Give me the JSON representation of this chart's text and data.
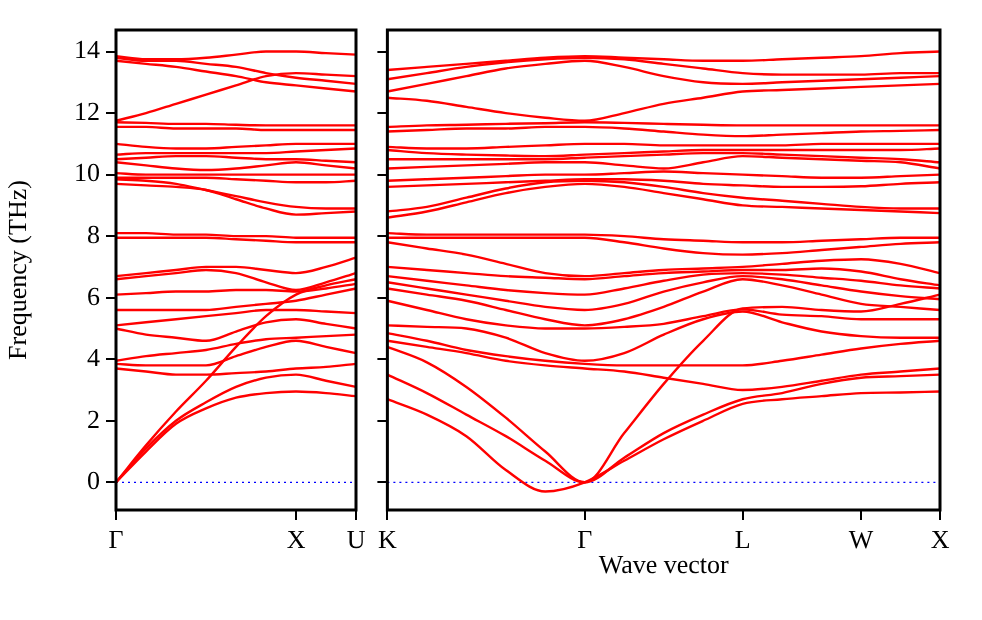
{
  "chart_data": [
    {
      "type": "line",
      "ylabel": "Frequency (THz)",
      "marker": "none",
      "line_style": "solid",
      "grid": false,
      "legend": false,
      "categories": [
        "Γ",
        null,
        null,
        null,
        null,
        null,
        "X",
        null,
        "U"
      ],
      "ylim": [
        -0.9,
        14.7
      ],
      "yticks": [
        0,
        2,
        4,
        6,
        8,
        10,
        12,
        14
      ],
      "ref_lines": [
        {
          "axis": "y",
          "value": 0,
          "label": null,
          "color": "#0000ff",
          "line_style": "dotted"
        }
      ],
      "series": [
        {
          "color": "#ff0000",
          "values": [
            0,
            1.0,
            1.9,
            2.4,
            2.75,
            2.9,
            2.95,
            2.9,
            2.8
          ]
        },
        {
          "color": "#ff0000",
          "values": [
            0,
            1.1,
            2.0,
            2.6,
            3.1,
            3.4,
            3.5,
            3.3,
            3.1
          ]
        },
        {
          "color": "#ff0000",
          "values": [
            0,
            1.2,
            2.3,
            3.3,
            4.4,
            5.4,
            6.1,
            6.4,
            6.6
          ]
        },
        {
          "color": "#ff0000",
          "values": [
            3.7,
            3.6,
            3.5,
            3.5,
            3.55,
            3.6,
            3.7,
            3.75,
            3.85
          ]
        },
        {
          "color": "#ff0000",
          "values": [
            3.85,
            3.8,
            3.8,
            3.8,
            4.1,
            4.4,
            4.6,
            4.4,
            4.2
          ]
        },
        {
          "color": "#ff0000",
          "values": [
            3.95,
            4.1,
            4.2,
            4.3,
            4.5,
            4.65,
            4.7,
            4.75,
            4.8
          ]
        },
        {
          "color": "#ff0000",
          "values": [
            5.0,
            4.8,
            4.7,
            4.6,
            4.9,
            5.2,
            5.3,
            5.15,
            5.0
          ]
        },
        {
          "color": "#ff0000",
          "values": [
            5.1,
            5.2,
            5.3,
            5.4,
            5.5,
            5.6,
            5.6,
            5.55,
            5.5
          ]
        },
        {
          "color": "#ff0000",
          "values": [
            5.6,
            5.6,
            5.6,
            5.6,
            5.7,
            5.8,
            5.9,
            6.1,
            6.3
          ]
        },
        {
          "color": "#ff0000",
          "values": [
            6.1,
            6.15,
            6.2,
            6.2,
            6.25,
            6.25,
            6.2,
            6.3,
            6.45
          ]
        },
        {
          "color": "#ff0000",
          "values": [
            6.6,
            6.7,
            6.8,
            6.9,
            6.8,
            6.5,
            6.25,
            6.5,
            6.8
          ]
        },
        {
          "color": "#ff0000",
          "values": [
            6.7,
            6.8,
            6.9,
            7.0,
            7.0,
            6.9,
            6.8,
            7.0,
            7.3
          ]
        },
        {
          "color": "#ff0000",
          "values": [
            8.1,
            8.1,
            8.05,
            8.05,
            8.0,
            8.0,
            7.95,
            7.95,
            7.95
          ]
        },
        {
          "color": "#ff0000",
          "values": [
            7.95,
            7.95,
            7.95,
            7.95,
            7.9,
            7.85,
            7.8,
            7.8,
            7.8
          ]
        },
        {
          "color": "#ff0000",
          "values": [
            9.7,
            9.65,
            9.6,
            9.5,
            9.2,
            8.9,
            8.7,
            8.75,
            8.8
          ]
        },
        {
          "color": "#ff0000",
          "values": [
            9.85,
            9.8,
            9.7,
            9.5,
            9.3,
            9.1,
            8.95,
            8.9,
            8.9
          ]
        },
        {
          "color": "#ff0000",
          "values": [
            9.9,
            9.9,
            9.9,
            9.9,
            9.85,
            9.8,
            9.75,
            9.75,
            9.8
          ]
        },
        {
          "color": "#ff0000",
          "values": [
            10.05,
            10.0,
            10.0,
            10.0,
            10.0,
            10.0,
            10.0,
            10.0,
            10.0
          ]
        },
        {
          "color": "#ff0000",
          "values": [
            10.4,
            10.3,
            10.2,
            10.15,
            10.2,
            10.3,
            10.4,
            10.3,
            10.2
          ]
        },
        {
          "color": "#ff0000",
          "values": [
            10.5,
            10.55,
            10.6,
            10.6,
            10.55,
            10.5,
            10.5,
            10.45,
            10.4
          ]
        },
        {
          "color": "#ff0000",
          "values": [
            10.65,
            10.7,
            10.7,
            10.7,
            10.7,
            10.7,
            10.75,
            10.8,
            10.85
          ]
        },
        {
          "color": "#ff0000",
          "values": [
            11.0,
            10.9,
            10.85,
            10.85,
            10.9,
            10.95,
            11.0,
            11.0,
            11.0
          ]
        },
        {
          "color": "#ff0000",
          "values": [
            11.55,
            11.55,
            11.5,
            11.5,
            11.5,
            11.45,
            11.45,
            11.45,
            11.45
          ]
        },
        {
          "color": "#ff0000",
          "values": [
            11.7,
            11.68,
            11.65,
            11.65,
            11.62,
            11.6,
            11.6,
            11.6,
            11.6
          ]
        },
        {
          "color": "#ff0000",
          "values": [
            11.75,
            12.0,
            12.3,
            12.6,
            12.9,
            13.2,
            13.3,
            13.25,
            13.2
          ]
        },
        {
          "color": "#ff0000",
          "values": [
            13.7,
            13.6,
            13.5,
            13.35,
            13.2,
            13.0,
            12.9,
            12.8,
            12.7
          ]
        },
        {
          "color": "#ff0000",
          "values": [
            13.8,
            13.7,
            13.7,
            13.6,
            13.5,
            13.3,
            13.15,
            13.05,
            12.95
          ]
        },
        {
          "color": "#ff0000",
          "values": [
            13.85,
            13.75,
            13.75,
            13.8,
            13.9,
            14.0,
            14.0,
            13.95,
            13.9
          ]
        }
      ]
    },
    {
      "type": "line",
      "xlabel": "Wave vector",
      "marker": "none",
      "line_style": "solid",
      "grid": false,
      "legend": false,
      "tick_labels": "x",
      "categories": [
        "K",
        null,
        null,
        null,
        null,
        "Γ",
        null,
        null,
        null,
        "L",
        null,
        null,
        "W",
        null,
        "X"
      ],
      "ylim": [
        -0.9,
        14.7
      ],
      "yticks": [
        0,
        2,
        4,
        6,
        8,
        10,
        12,
        14
      ],
      "ref_lines": [
        {
          "axis": "y",
          "value": 0,
          "label": null,
          "color": "#0000ff",
          "line_style": "dotted"
        }
      ],
      "series": [
        {
          "color": "#ff0000",
          "values": [
            2.7,
            2.2,
            1.5,
            0.4,
            -0.3,
            0,
            0.7,
            1.4,
            2.0,
            2.55,
            2.7,
            2.8,
            2.9,
            2.92,
            2.95
          ]
        },
        {
          "color": "#ff0000",
          "values": [
            3.5,
            2.9,
            2.2,
            1.5,
            0.7,
            0,
            0.8,
            1.6,
            2.2,
            2.7,
            2.9,
            3.2,
            3.4,
            3.45,
            3.5
          ]
        },
        {
          "color": "#ff0000",
          "values": [
            4.4,
            3.9,
            3.1,
            2.1,
            1.0,
            0,
            1.6,
            3.2,
            4.6,
            5.65,
            5.7,
            5.6,
            5.55,
            5.8,
            6.1
          ]
        },
        {
          "color": "#ff0000",
          "values": [
            4.6,
            4.4,
            4.2,
            3.95,
            3.8,
            3.7,
            3.6,
            3.4,
            3.2,
            3.0,
            3.1,
            3.3,
            3.5,
            3.6,
            3.7
          ]
        },
        {
          "color": "#ff0000",
          "values": [
            4.85,
            4.6,
            4.3,
            4.1,
            3.95,
            3.85,
            3.8,
            3.8,
            3.8,
            3.8,
            3.95,
            4.15,
            4.35,
            4.5,
            4.6
          ]
        },
        {
          "color": "#ff0000",
          "values": [
            5.1,
            5.05,
            5.0,
            4.7,
            4.2,
            3.95,
            4.2,
            4.8,
            5.3,
            5.55,
            5.2,
            4.9,
            4.75,
            4.7,
            4.7
          ]
        },
        {
          "color": "#ff0000",
          "values": [
            5.9,
            5.6,
            5.3,
            5.1,
            5.0,
            5.0,
            5.05,
            5.15,
            5.4,
            5.62,
            5.45,
            5.4,
            5.3,
            5.3,
            5.3
          ]
        },
        {
          "color": "#ff0000",
          "values": [
            6.3,
            6.1,
            5.9,
            5.6,
            5.3,
            5.1,
            5.3,
            5.7,
            6.2,
            6.6,
            6.4,
            6.1,
            5.8,
            5.7,
            5.6
          ]
        },
        {
          "color": "#ff0000",
          "values": [
            6.5,
            6.3,
            6.1,
            5.9,
            5.7,
            5.6,
            5.8,
            6.2,
            6.5,
            6.7,
            6.6,
            6.4,
            6.2,
            6.05,
            5.95
          ]
        },
        {
          "color": "#ff0000",
          "values": [
            6.7,
            6.55,
            6.4,
            6.25,
            6.15,
            6.1,
            6.3,
            6.55,
            6.75,
            6.8,
            6.75,
            6.65,
            6.55,
            6.4,
            6.3
          ]
        },
        {
          "color": "#ff0000",
          "values": [
            7.0,
            6.9,
            6.8,
            6.7,
            6.65,
            6.6,
            6.7,
            6.8,
            6.85,
            6.9,
            6.9,
            6.95,
            6.85,
            6.6,
            6.4
          ]
        },
        {
          "color": "#ff0000",
          "values": [
            7.8,
            7.6,
            7.4,
            7.1,
            6.8,
            6.7,
            6.8,
            6.9,
            6.95,
            7.0,
            7.1,
            7.2,
            7.25,
            7.1,
            6.8
          ]
        },
        {
          "color": "#ff0000",
          "values": [
            8.1,
            8.05,
            8.05,
            8.05,
            8.05,
            8.05,
            8.0,
            7.9,
            7.85,
            7.8,
            7.8,
            7.85,
            7.9,
            7.95,
            7.95
          ]
        },
        {
          "color": "#ff0000",
          "values": [
            7.95,
            7.95,
            7.95,
            7.95,
            7.95,
            7.95,
            7.8,
            7.6,
            7.45,
            7.4,
            7.45,
            7.55,
            7.65,
            7.75,
            7.8
          ]
        },
        {
          "color": "#ff0000",
          "values": [
            8.6,
            8.8,
            9.1,
            9.4,
            9.6,
            9.7,
            9.6,
            9.4,
            9.2,
            9.0,
            8.95,
            8.9,
            8.85,
            8.8,
            8.75
          ]
        },
        {
          "color": "#ff0000",
          "values": [
            8.8,
            8.95,
            9.25,
            9.55,
            9.75,
            9.8,
            9.75,
            9.6,
            9.4,
            9.25,
            9.15,
            9.05,
            8.95,
            8.9,
            8.9
          ]
        },
        {
          "color": "#ff0000",
          "values": [
            9.6,
            9.65,
            9.7,
            9.75,
            9.8,
            9.85,
            9.85,
            9.8,
            9.7,
            9.65,
            9.6,
            9.6,
            9.62,
            9.7,
            9.75
          ]
        },
        {
          "color": "#ff0000",
          "values": [
            9.8,
            9.85,
            9.9,
            9.95,
            10.0,
            10.0,
            10.05,
            10.1,
            10.05,
            10.0,
            9.95,
            9.9,
            9.9,
            9.95,
            10.0
          ]
        },
        {
          "color": "#ff0000",
          "values": [
            10.2,
            10.25,
            10.3,
            10.35,
            10.4,
            10.4,
            10.3,
            10.2,
            10.4,
            10.6,
            10.55,
            10.5,
            10.45,
            10.4,
            10.2
          ]
        },
        {
          "color": "#ff0000",
          "values": [
            10.5,
            10.5,
            10.5,
            10.5,
            10.5,
            10.55,
            10.6,
            10.65,
            10.7,
            10.7,
            10.65,
            10.6,
            10.55,
            10.5,
            10.4
          ]
        },
        {
          "color": "#ff0000",
          "values": [
            10.8,
            10.7,
            10.65,
            10.62,
            10.6,
            10.65,
            10.7,
            10.75,
            10.8,
            10.8,
            10.8,
            10.8,
            10.8,
            10.8,
            10.85
          ]
        },
        {
          "color": "#ff0000",
          "values": [
            10.9,
            10.85,
            10.85,
            10.9,
            10.95,
            11.0,
            11.0,
            10.95,
            10.95,
            10.95,
            10.95,
            11.0,
            11.0,
            11.0,
            11.0
          ]
        },
        {
          "color": "#ff0000",
          "values": [
            11.4,
            11.45,
            11.5,
            11.5,
            11.55,
            11.55,
            11.5,
            11.4,
            11.3,
            11.25,
            11.3,
            11.35,
            11.4,
            11.42,
            11.45
          ]
        },
        {
          "color": "#ff0000",
          "values": [
            11.55,
            11.6,
            11.62,
            11.65,
            11.67,
            11.7,
            11.68,
            11.65,
            11.62,
            11.6,
            11.6,
            11.6,
            11.6,
            11.6,
            11.6
          ]
        },
        {
          "color": "#ff0000",
          "values": [
            12.5,
            12.4,
            12.2,
            12.0,
            11.85,
            11.75,
            12.0,
            12.3,
            12.5,
            12.7,
            12.75,
            12.8,
            12.85,
            12.9,
            12.95
          ]
        },
        {
          "color": "#ff0000",
          "values": [
            12.7,
            12.95,
            13.2,
            13.45,
            13.6,
            13.7,
            13.5,
            13.2,
            13.0,
            12.95,
            13.0,
            13.05,
            13.1,
            13.15,
            13.2
          ]
        },
        {
          "color": "#ff0000",
          "values": [
            13.1,
            13.3,
            13.5,
            13.65,
            13.75,
            13.8,
            13.75,
            13.6,
            13.45,
            13.3,
            13.25,
            13.25,
            13.25,
            13.3,
            13.3
          ]
        },
        {
          "color": "#ff0000",
          "values": [
            13.4,
            13.5,
            13.6,
            13.7,
            13.8,
            13.85,
            13.8,
            13.75,
            13.7,
            13.7,
            13.75,
            13.8,
            13.85,
            13.95,
            14.0
          ]
        }
      ]
    }
  ]
}
